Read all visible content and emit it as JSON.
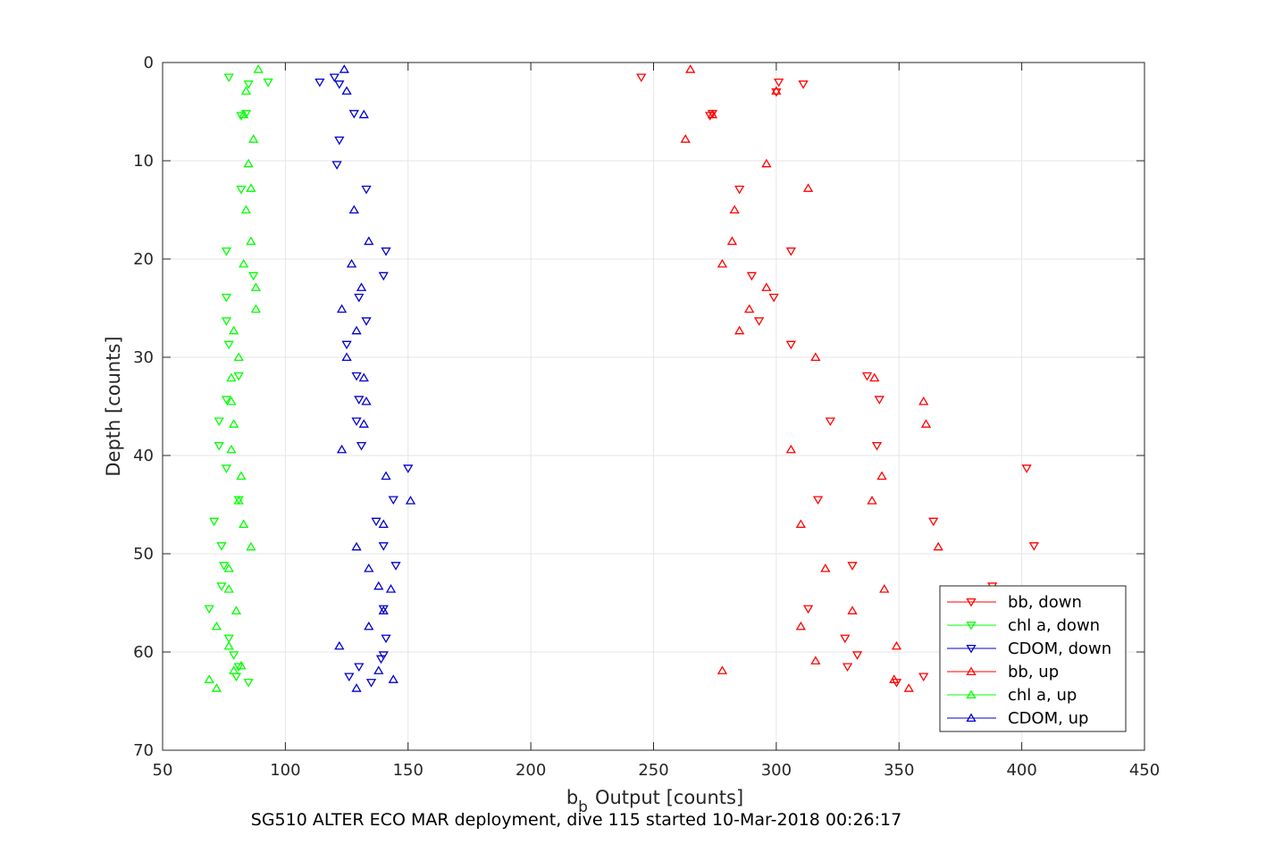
{
  "chart_data": {
    "type": "scatter",
    "title": "",
    "xlabel": "b",
    "xlabel_sub": "b",
    "xlabel_rest": "Output [counts]",
    "ylabel": "Depth [counts]",
    "caption": "SG510 ALTER ECO MAR deployment, dive 115 started 10-Mar-2018 00:26:17",
    "xlim": [
      50,
      450
    ],
    "ylim": [
      0,
      70
    ],
    "y_reversed": true,
    "x_ticks": [
      50,
      100,
      150,
      200,
      250,
      300,
      350,
      400,
      450
    ],
    "y_ticks": [
      0,
      10,
      20,
      30,
      40,
      50,
      60,
      70
    ],
    "grid": true,
    "legend_position": "lower-right",
    "series": [
      {
        "name": "bb, down",
        "color": "#ff0000",
        "marker": "triangle-down",
        "points": [
          [
            245,
            1.5
          ],
          [
            301,
            2.0
          ],
          [
            311,
            2.2
          ],
          [
            300,
            3.0
          ],
          [
            274,
            5.2
          ],
          [
            273,
            5.4
          ],
          [
            285,
            12.9
          ],
          [
            306,
            19.2
          ],
          [
            290,
            21.7
          ],
          [
            299,
            23.9
          ],
          [
            293,
            26.3
          ],
          [
            306,
            28.7
          ],
          [
            337,
            31.9
          ],
          [
            342,
            34.3
          ],
          [
            322,
            36.5
          ],
          [
            341,
            39.0
          ],
          [
            402,
            41.3
          ],
          [
            317,
            44.5
          ],
          [
            364,
            46.7
          ],
          [
            405,
            49.2
          ],
          [
            331,
            51.2
          ],
          [
            388,
            53.3
          ],
          [
            313,
            55.6
          ],
          [
            328,
            58.6
          ],
          [
            333,
            60.3
          ],
          [
            329,
            61.5
          ],
          [
            360,
            62.5
          ],
          [
            349,
            63.1
          ]
        ]
      },
      {
        "name": "chl a, down",
        "color": "#00ff00",
        "marker": "triangle-down",
        "points": [
          [
            77,
            1.5
          ],
          [
            93,
            2.0
          ],
          [
            85,
            2.2
          ],
          [
            84,
            5.2
          ],
          [
            82,
            5.4
          ],
          [
            82,
            12.9
          ],
          [
            76,
            19.2
          ],
          [
            87,
            21.7
          ],
          [
            76,
            23.9
          ],
          [
            76,
            26.3
          ],
          [
            77,
            28.7
          ],
          [
            81,
            31.9
          ],
          [
            76,
            34.3
          ],
          [
            73,
            36.5
          ],
          [
            73,
            39.0
          ],
          [
            76,
            41.3
          ],
          [
            81,
            44.5
          ],
          [
            71,
            46.7
          ],
          [
            74,
            49.2
          ],
          [
            75,
            51.2
          ],
          [
            74,
            53.3
          ],
          [
            69,
            55.6
          ],
          [
            77,
            58.6
          ],
          [
            79,
            60.3
          ],
          [
            81,
            61.5
          ],
          [
            80,
            62.5
          ],
          [
            85,
            63.1
          ]
        ]
      },
      {
        "name": "CDOM, down",
        "color": "#0000cc",
        "marker": "triangle-down",
        "points": [
          [
            114,
            2.0
          ],
          [
            120,
            1.5
          ],
          [
            122,
            2.2
          ],
          [
            128,
            5.2
          ],
          [
            122,
            7.9
          ],
          [
            121,
            10.4
          ],
          [
            133,
            12.9
          ],
          [
            141,
            19.2
          ],
          [
            140,
            21.7
          ],
          [
            130,
            23.9
          ],
          [
            133,
            26.3
          ],
          [
            125,
            28.7
          ],
          [
            129,
            31.9
          ],
          [
            130,
            34.3
          ],
          [
            129,
            36.5
          ],
          [
            131,
            39.0
          ],
          [
            150,
            41.3
          ],
          [
            144,
            44.5
          ],
          [
            137,
            46.7
          ],
          [
            140,
            49.2
          ],
          [
            145,
            51.2
          ],
          [
            140,
            55.6
          ],
          [
            141,
            58.6
          ],
          [
            140,
            60.3
          ],
          [
            139,
            60.7
          ],
          [
            130,
            61.5
          ],
          [
            126,
            62.5
          ],
          [
            135,
            63.1
          ]
        ]
      },
      {
        "name": "bb, up",
        "color": "#ff0000",
        "marker": "triangle-up",
        "points": [
          [
            265,
            0.7
          ],
          [
            300,
            2.9
          ],
          [
            274,
            5.3
          ],
          [
            263,
            7.8
          ],
          [
            296,
            10.3
          ],
          [
            313,
            12.8
          ],
          [
            283,
            15.0
          ],
          [
            282,
            18.2
          ],
          [
            278,
            20.5
          ],
          [
            296,
            22.9
          ],
          [
            289,
            25.1
          ],
          [
            285,
            27.3
          ],
          [
            316,
            30.0
          ],
          [
            340,
            32.1
          ],
          [
            360,
            34.5
          ],
          [
            361,
            36.8
          ],
          [
            306,
            39.4
          ],
          [
            343,
            42.1
          ],
          [
            339,
            44.6
          ],
          [
            310,
            47.0
          ],
          [
            366,
            49.3
          ],
          [
            320,
            51.5
          ],
          [
            344,
            53.6
          ],
          [
            331,
            55.8
          ],
          [
            310,
            57.4
          ],
          [
            349,
            59.4
          ],
          [
            278,
            61.9
          ],
          [
            316,
            60.9
          ],
          [
            348,
            62.8
          ],
          [
            354,
            63.7
          ]
        ]
      },
      {
        "name": "chl a, up",
        "color": "#00ff00",
        "marker": "triangle-up",
        "points": [
          [
            89,
            0.7
          ],
          [
            84,
            2.9
          ],
          [
            83,
            5.3
          ],
          [
            87,
            7.8
          ],
          [
            85,
            10.3
          ],
          [
            86,
            12.8
          ],
          [
            84,
            15.0
          ],
          [
            86,
            18.2
          ],
          [
            83,
            20.5
          ],
          [
            88,
            22.9
          ],
          [
            88,
            25.1
          ],
          [
            79,
            27.3
          ],
          [
            81,
            30.0
          ],
          [
            78,
            32.1
          ],
          [
            78,
            34.5
          ],
          [
            79,
            36.8
          ],
          [
            78,
            39.4
          ],
          [
            82,
            42.1
          ],
          [
            81,
            44.6
          ],
          [
            83,
            47.0
          ],
          [
            86,
            49.3
          ],
          [
            77,
            51.5
          ],
          [
            77,
            53.6
          ],
          [
            80,
            55.8
          ],
          [
            72,
            57.4
          ],
          [
            77,
            59.4
          ],
          [
            79,
            61.9
          ],
          [
            82,
            61.4
          ],
          [
            69,
            62.8
          ],
          [
            72,
            63.7
          ]
        ]
      },
      {
        "name": "CDOM, up",
        "color": "#0000cc",
        "marker": "triangle-up",
        "points": [
          [
            124,
            0.7
          ],
          [
            125,
            2.9
          ],
          [
            132,
            5.3
          ],
          [
            128,
            15.0
          ],
          [
            134,
            18.2
          ],
          [
            127,
            20.5
          ],
          [
            131,
            22.9
          ],
          [
            123,
            25.1
          ],
          [
            129,
            27.3
          ],
          [
            125,
            30.0
          ],
          [
            132,
            32.1
          ],
          [
            133,
            34.5
          ],
          [
            132,
            36.8
          ],
          [
            123,
            39.4
          ],
          [
            141,
            42.1
          ],
          [
            151,
            44.6
          ],
          [
            140,
            47.0
          ],
          [
            129,
            49.3
          ],
          [
            134,
            51.5
          ],
          [
            138,
            53.3
          ],
          [
            143,
            53.6
          ],
          [
            140,
            55.8
          ],
          [
            134,
            57.4
          ],
          [
            122,
            59.4
          ],
          [
            138,
            61.9
          ],
          [
            144,
            62.8
          ],
          [
            129,
            63.7
          ]
        ]
      }
    ]
  }
}
